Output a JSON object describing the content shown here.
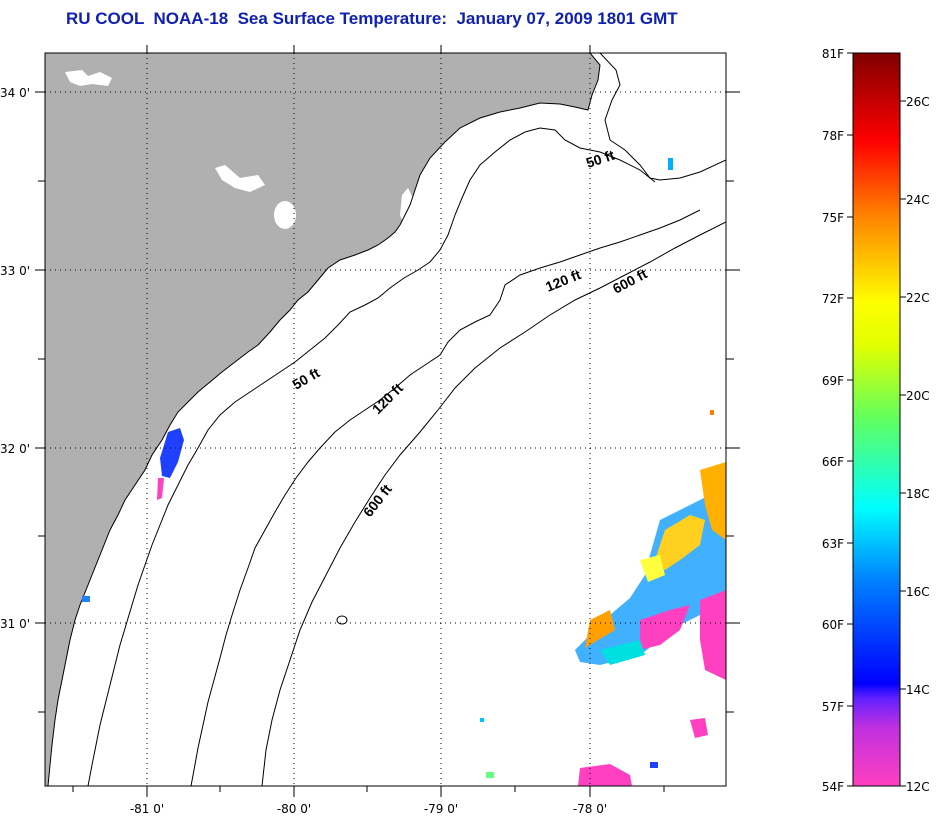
{
  "title": "RU COOL  NOAA-18  Sea Surface Temperature:  January 07, 2009 1801 GMT",
  "lat_labels": [
    "34 0'",
    "33 0'",
    "32 0'",
    "31 0'"
  ],
  "lon_labels": [
    "-81 0'",
    "-80 0'",
    "-79 0'",
    "-78 0'"
  ],
  "contours": [
    "50 ft",
    "120 ft",
    "600 ft",
    "50 ft",
    "120 ft",
    "600 ft"
  ],
  "colorbar": {
    "fahrenheit": [
      "81F",
      "78F",
      "75F",
      "72F",
      "69F",
      "66F",
      "63F",
      "60F",
      "57F",
      "54F"
    ],
    "celsius": [
      "26C",
      "24C",
      "22C",
      "20C",
      "18C",
      "16C",
      "14C",
      "12C"
    ],
    "colors": [
      "#ff40c0",
      "#a020e0",
      "#2000ff",
      "#0060ff",
      "#00c0ff",
      "#00ffe0",
      "#40ff80",
      "#c0ff00",
      "#ffff00",
      "#ffa000",
      "#ff4000",
      "#ff0000",
      "#c00000",
      "#800000"
    ]
  },
  "colors": {
    "land": "#b0b0b0",
    "title": "#1020b0"
  }
}
